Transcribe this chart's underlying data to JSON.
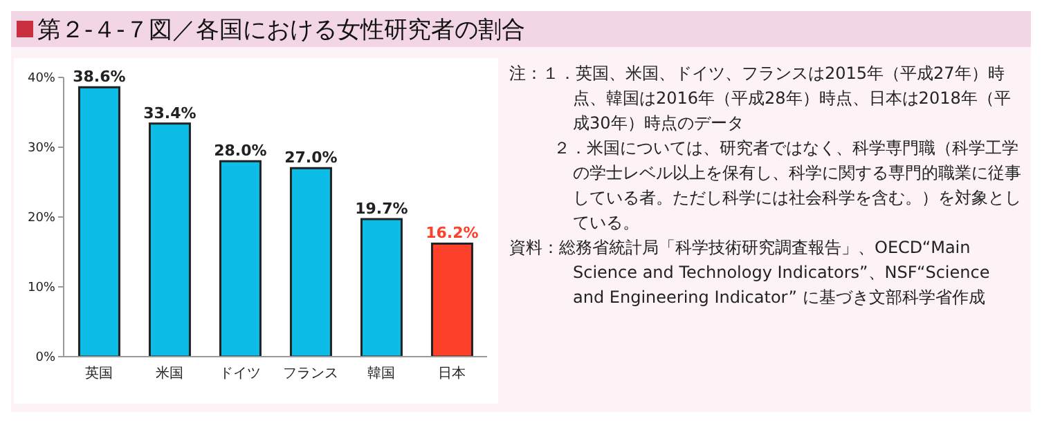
{
  "chart_data": {
    "type": "bar",
    "title": "第２-４-７図／各国における女性研究者の割合",
    "categories": [
      "英国",
      "米国",
      "ドイツ",
      "フランス",
      "韓国",
      "日本"
    ],
    "values": [
      38.6,
      33.4,
      28.0,
      27.0,
      19.7,
      16.2
    ],
    "colors": [
      "#0dbde8",
      "#0dbde8",
      "#0dbde8",
      "#0dbde8",
      "#0dbde8",
      "#fd412b"
    ],
    "value_labels": [
      "38.6%",
      "33.4%",
      "28.0%",
      "27.0%",
      "19.7%",
      "16.2%"
    ],
    "ylim": [
      0,
      40
    ],
    "yticks": [
      {
        "value": 0,
        "label": "0%"
      },
      {
        "value": 10,
        "label": "10%"
      },
      {
        "value": 20,
        "label": "20%"
      },
      {
        "value": 30,
        "label": "30%"
      },
      {
        "value": 40,
        "label": "40%"
      }
    ],
    "grid": false,
    "legend": false,
    "annotations": [
      "注：１．英国、米国、ドイツ、フランスは2015年（平成27年）時点、韓国は2016年（平成28年）時点、日本は2018年（平成30年）時点のデータ",
      "２．米国については、研究者ではなく、科学専門職（科学工学の学士レベル以上を保有し、科学に関する専門的職業に従事している者。ただし科学には社会科学を含む。）を対象としている。",
      "資料：総務省統計局「科学技術研究調査報告」、OECD“Main Science and Technology Indicators”、NSF“Science and Engineering Indicator” に基づき文部科学省作成"
    ]
  }
}
